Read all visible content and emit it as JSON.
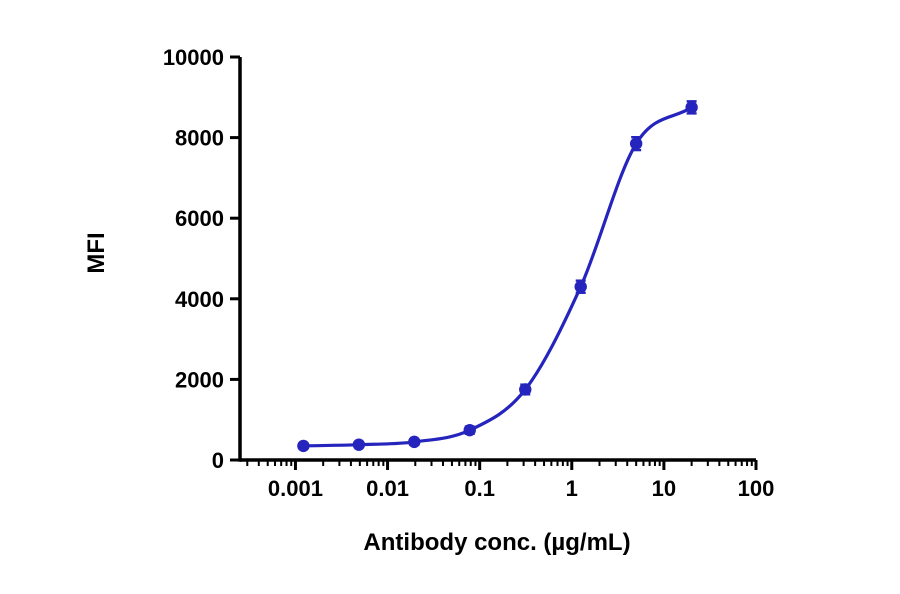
{
  "chart_data": {
    "type": "line",
    "title": "",
    "xlabel": "Antibody conc. (µg/mL)",
    "ylabel": "MFI",
    "x_scale": "log10",
    "xlim": [
      0.00025,
      100
    ],
    "ylim": [
      0,
      10000
    ],
    "x_ticks": [
      0.001,
      0.01,
      0.1,
      1,
      10,
      100
    ],
    "x_tick_labels": [
      "0.001",
      "0.01",
      "0.1",
      "1",
      "10",
      "100"
    ],
    "y_ticks": [
      0,
      2000,
      4000,
      6000,
      8000,
      10000
    ],
    "y_tick_labels": [
      "0",
      "2000",
      "4000",
      "6000",
      "8000",
      "10000"
    ],
    "grid": "off",
    "legend": "none",
    "curve_style": "sigmoidal dose-response curve through points",
    "series": [
      {
        "name": "MFI",
        "color": "#2525bd",
        "marker": "circle-with-error-bars",
        "x": [
          0.00122,
          0.00488,
          0.0195,
          0.078,
          0.3125,
          1.25,
          5,
          20
        ],
        "y": [
          350,
          380,
          450,
          740,
          1750,
          4300,
          7850,
          8750
        ],
        "yerr": [
          60,
          60,
          70,
          90,
          120,
          150,
          160,
          150
        ]
      }
    ]
  },
  "layout_colors": {
    "axis": "#000000",
    "background": "#ffffff"
  }
}
